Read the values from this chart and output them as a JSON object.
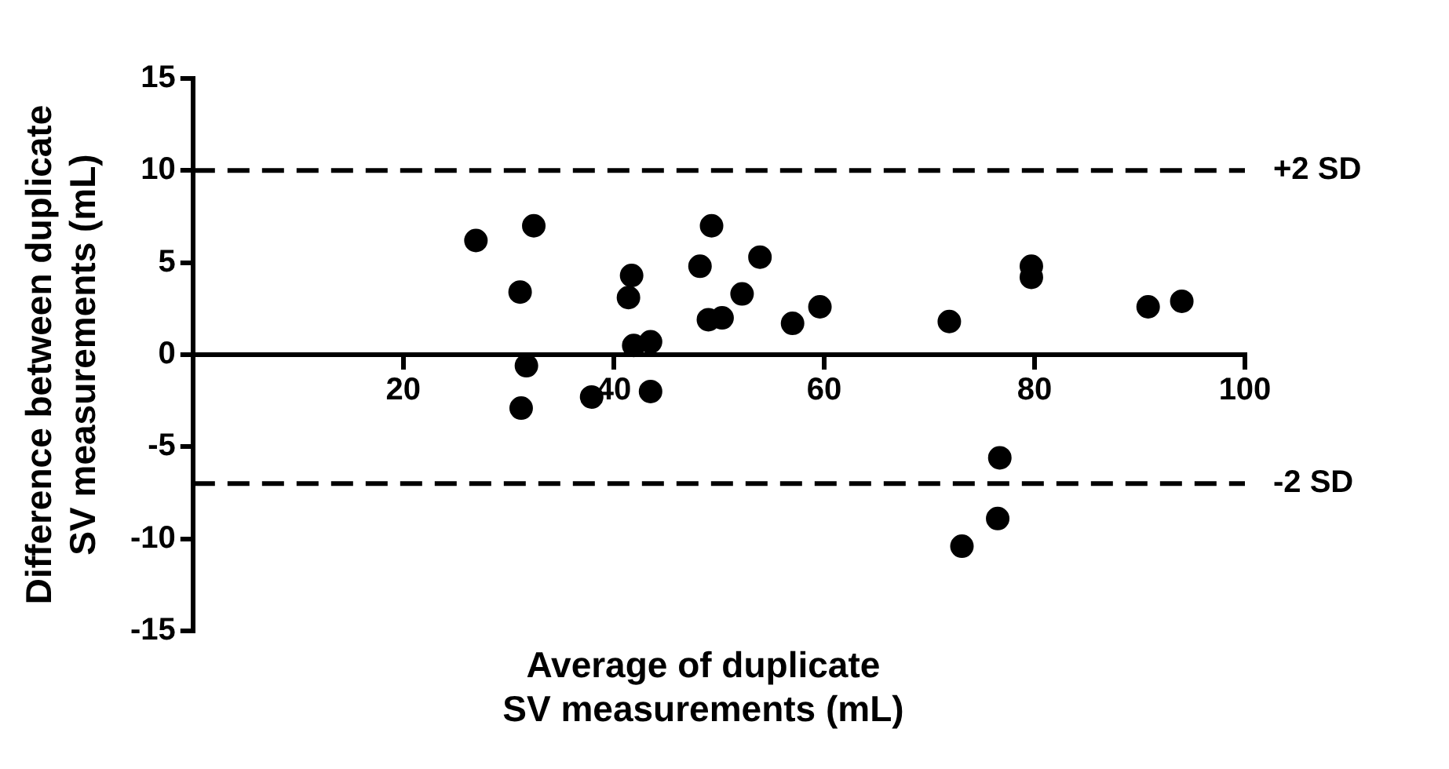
{
  "chart_data": {
    "type": "scatter",
    "xlabel": "Average of duplicate\nSV measurements (mL)",
    "ylabel": "Difference between duplicate\nSV measurements (mL)",
    "x": [
      26.9,
      32.4,
      31.1,
      31.7,
      31.2,
      37.9,
      41.7,
      41.4,
      41.9,
      43.5,
      43.5,
      49.3,
      48.2,
      49.0,
      50.3,
      52.2,
      53.9,
      57.0,
      59.6,
      71.9,
      79.7,
      79.7,
      90.8,
      94.0,
      76.7,
      76.5,
      73.1
    ],
    "values": [
      6.2,
      7.0,
      3.4,
      -0.6,
      -2.9,
      -2.3,
      4.3,
      3.1,
      0.5,
      0.7,
      -2.0,
      7.0,
      4.8,
      1.9,
      2.0,
      3.3,
      5.3,
      1.7,
      2.6,
      1.8,
      4.8,
      4.2,
      2.6,
      2.9,
      -5.6,
      -8.9,
      -10.4
    ],
    "color": "#000000",
    "marker": "circle",
    "xlim": [
      0,
      100
    ],
    "xticks": [
      20,
      40,
      60,
      80,
      100
    ],
    "ylim": [
      -15,
      15
    ],
    "yticks": [
      -15,
      -10,
      -5,
      0,
      5,
      10,
      15
    ],
    "grid": false,
    "legend": false,
    "ref_lines": [
      {
        "axis": "y",
        "value": 10,
        "label": "+2 SD",
        "color": "#000000",
        "line_style": "dashed"
      },
      {
        "axis": "y",
        "value": -7,
        "label": "-2 SD",
        "color": "#000000",
        "line_style": "dashed"
      }
    ]
  }
}
